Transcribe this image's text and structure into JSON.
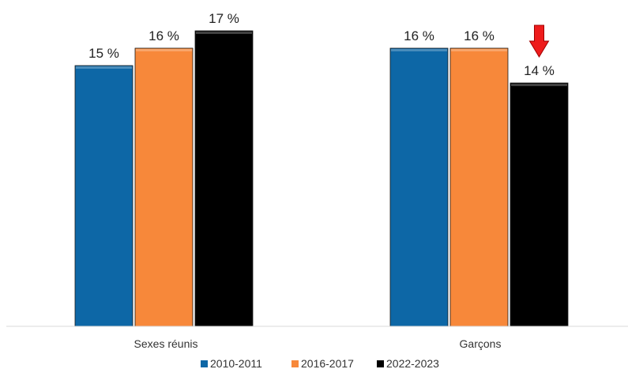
{
  "chart_data": {
    "type": "bar",
    "title": "",
    "xlabel": "",
    "ylabel": "",
    "categories": [
      "Sexes réunis",
      "Garçons"
    ],
    "series": [
      {
        "name": "2010-2011",
        "values": [
          15,
          16
        ],
        "labels": [
          "15 %",
          "16 %"
        ],
        "color": "#0d67a6"
      },
      {
        "name": "2016-2017",
        "values": [
          16,
          16
        ],
        "labels": [
          "16 %",
          "16 %"
        ],
        "color": "#f7883a"
      },
      {
        "name": "2022-2023",
        "values": [
          17,
          14
        ],
        "labels": [
          "17 %",
          "14 %"
        ],
        "color": "#000000"
      }
    ],
    "ylim": [
      0,
      17
    ],
    "grid": false,
    "legend_position": "bottom",
    "annotations": [
      {
        "type": "arrow-down",
        "category": "Garçons",
        "series": "2022-2023",
        "color": "#ee1c1c"
      }
    ]
  }
}
